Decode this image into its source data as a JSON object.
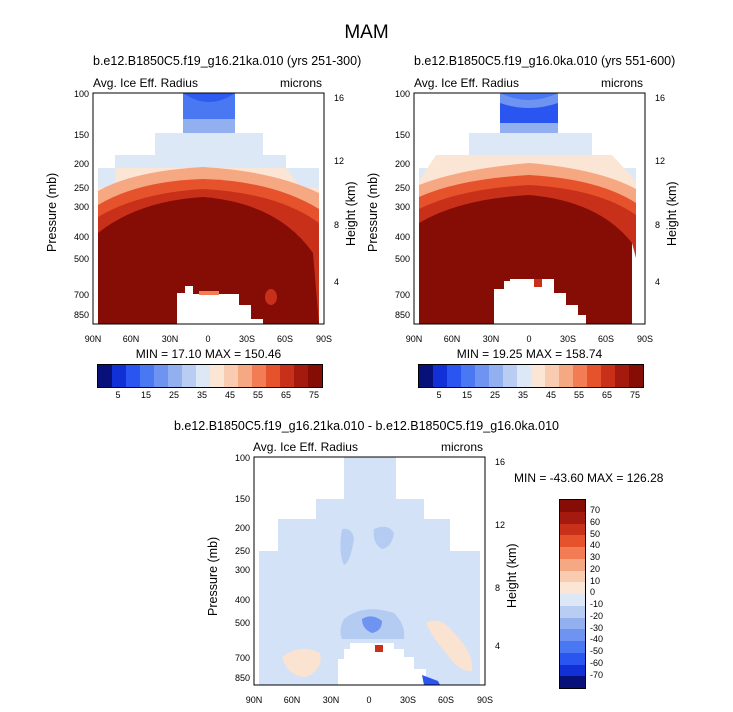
{
  "page_title": "MAM",
  "panels": [
    {
      "title": "b.e12.B1850C5.f19_g16.21ka.010 (yrs 251-300)",
      "left_label": "Avg. Ice Eff. Radius",
      "right_label": "microns",
      "stats": "MIN = 17.10   MAX = 150.46"
    },
    {
      "title": "b.e12.B1850C5.f19_g16.0ka.010 (yrs 551-600)",
      "left_label": "Avg. Ice Eff. Radius",
      "right_label": "microns",
      "stats": "MIN = 19.25   MAX = 158.74"
    },
    {
      "title": "b.e12.B1850C5.f19_g16.21ka.010 - b.e12.B1850C5.f19_g16.0ka.010",
      "left_label": "Avg. Ice Eff. Radius",
      "right_label": "microns",
      "stats": "MIN = -43.60   MAX = 126.28"
    }
  ],
  "axes": {
    "ylabel": "Pressure (mb)",
    "ylabel_right": "Height (km)",
    "pressure_ticks": [
      "100",
      "150",
      "200",
      "250",
      "300",
      "400",
      "500",
      "700",
      "850"
    ],
    "height_ticks": [
      "16",
      "12",
      "8",
      "4"
    ],
    "lat_ticks": [
      "90N",
      "60N",
      "30N",
      "0",
      "30S",
      "60S",
      "90S"
    ]
  },
  "chart_data": [
    {
      "type": "heatmap",
      "title": "b.e12.B1850C5.f19_g16.21ka.010 (yrs 251-300)",
      "variable": "Avg. Ice Eff. Radius",
      "units": "microns",
      "xlabel": "",
      "ylabel": "Pressure (mb)",
      "ylabel_right": "Height (km)",
      "x_range": [
        "90N",
        "90S"
      ],
      "y_range_mb": [
        100,
        850
      ],
      "min": 17.1,
      "max": 150.46
    },
    {
      "type": "heatmap",
      "title": "b.e12.B1850C5.f19_g16.0ka.010 (yrs 551-600)",
      "variable": "Avg. Ice Eff. Radius",
      "units": "microns",
      "xlabel": "",
      "ylabel": "Pressure (mb)",
      "ylabel_right": "Height (km)",
      "x_range": [
        "90N",
        "90S"
      ],
      "y_range_mb": [
        100,
        850
      ],
      "min": 19.25,
      "max": 158.74
    },
    {
      "type": "heatmap",
      "title": "b.e12.B1850C5.f19_g16.21ka.010 - b.e12.B1850C5.f19_g16.0ka.010",
      "variable": "Avg. Ice Eff. Radius",
      "units": "microns",
      "xlabel": "",
      "ylabel": "Pressure (mb)",
      "ylabel_right": "Height (km)",
      "x_range": [
        "90N",
        "90S"
      ],
      "y_range_mb": [
        100,
        850
      ],
      "min": -43.6,
      "max": 126.28
    }
  ],
  "colorbar_abs": {
    "labels": [
      "5",
      "15",
      "25",
      "35",
      "45",
      "55",
      "65",
      "75"
    ],
    "colors": [
      "#08107a",
      "#1131d6",
      "#2a55f0",
      "#4a78f2",
      "#6e93f0",
      "#92b0ef",
      "#b9ccf2",
      "#dde8f6",
      "#fbe6d6",
      "#f9cbb1",
      "#f6a883",
      "#f27d54",
      "#e6522b",
      "#c9301a",
      "#a51a0e",
      "#860d05"
    ]
  },
  "colorbar_diff": {
    "labels": [
      "70",
      "60",
      "50",
      "40",
      "30",
      "20",
      "10",
      "0",
      "-10",
      "-20",
      "-30",
      "-40",
      "-50",
      "-60",
      "-70"
    ],
    "colors": [
      "#860d05",
      "#a51a0e",
      "#c9301a",
      "#e6522b",
      "#f27d54",
      "#f6a883",
      "#f9cbb1",
      "#fbe6d6",
      "#dde8f6",
      "#b9ccf2",
      "#92b0ef",
      "#6e93f0",
      "#4a78f2",
      "#2a55f0",
      "#1131d6",
      "#08107a"
    ]
  }
}
